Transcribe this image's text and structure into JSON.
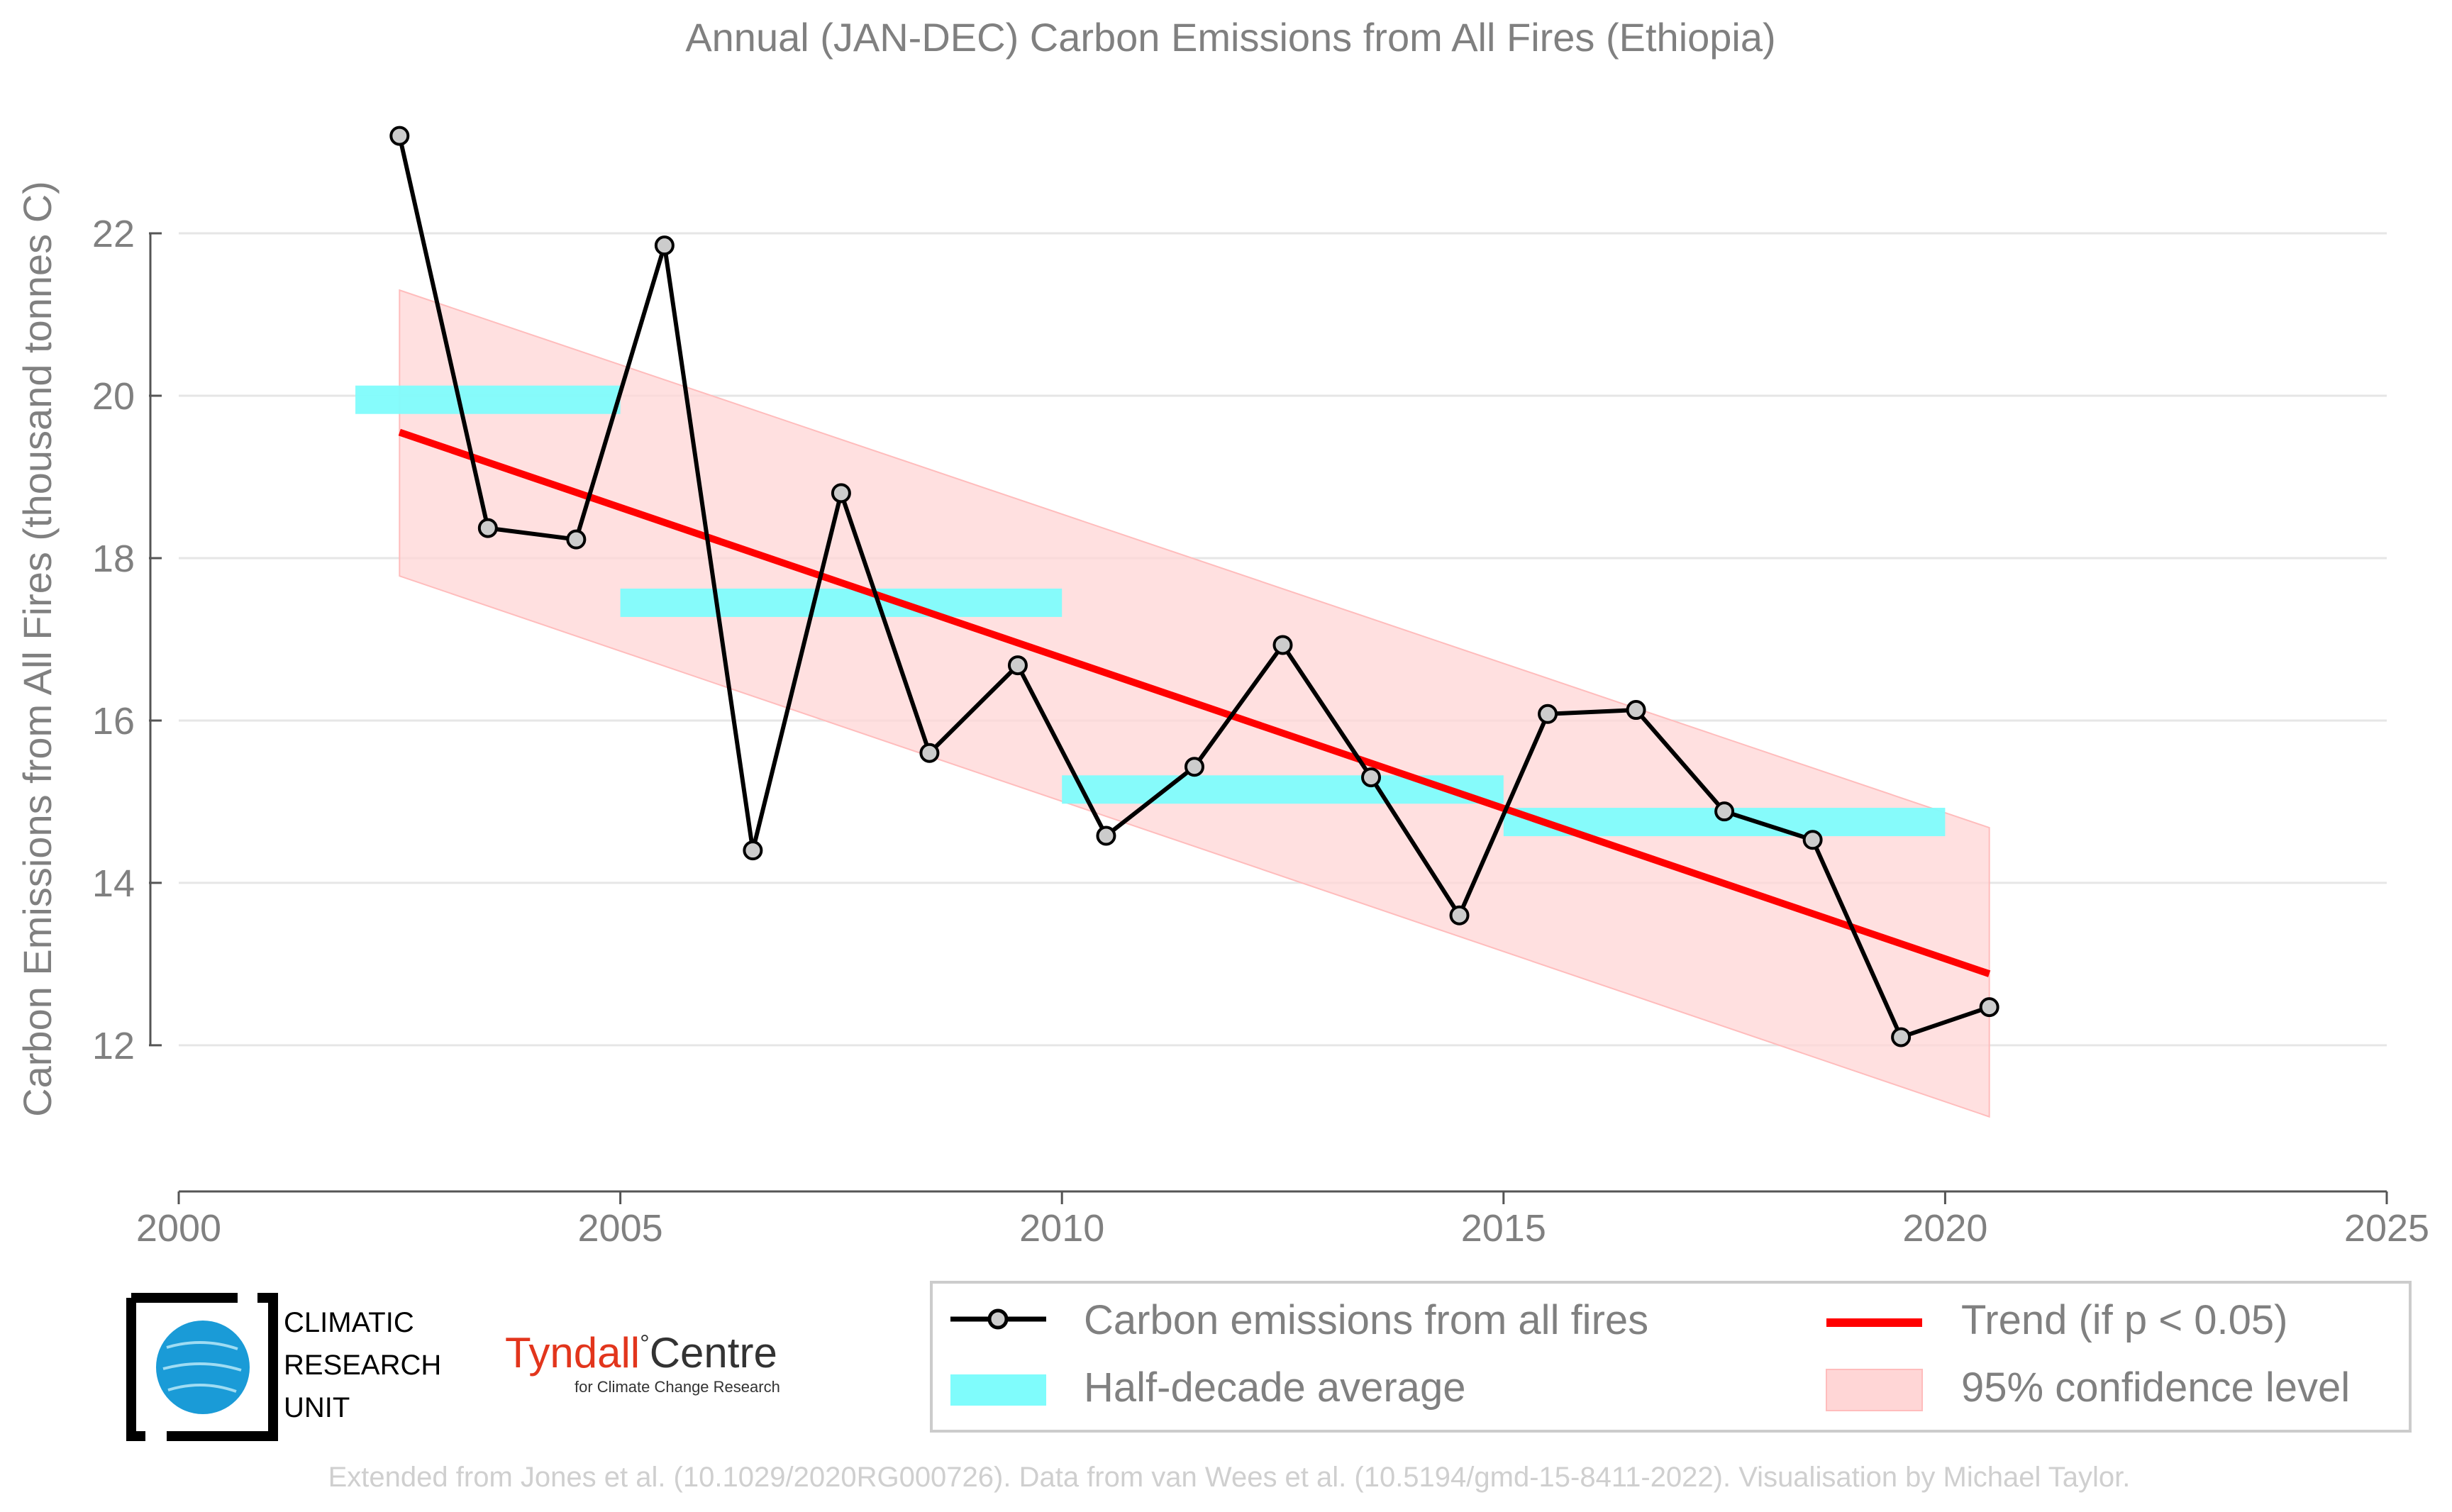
{
  "chart_data": {
    "type": "line",
    "title": "Annual (JAN-DEC) Carbon Emissions from All Fires (Ethiopia)",
    "xlabel": "",
    "ylabel": "Carbon Emissions from All Fires (thousand tonnes C)",
    "xlim": [
      2000,
      2025
    ],
    "ylim": [
      10.2,
      24.0
    ],
    "x_ticks": [
      2000,
      2005,
      2010,
      2015,
      2020,
      2025
    ],
    "y_ticks": [
      12,
      14,
      16,
      18,
      20,
      22
    ],
    "grid": "horizontal",
    "legend_position": "bottom-right",
    "series": [
      {
        "name": "Carbon emissions from all fires",
        "color": "#000000",
        "marker_fill": "#cccccc",
        "x": [
          2002.5,
          2003.5,
          2004.5,
          2005.5,
          2006.5,
          2007.5,
          2008.5,
          2009.5,
          2010.5,
          2011.5,
          2012.5,
          2013.5,
          2014.5,
          2015.5,
          2016.5,
          2017.5,
          2018.5,
          2019.5,
          2020.5
        ],
        "values": [
          23.2,
          18.37,
          18.23,
          21.85,
          14.4,
          18.8,
          15.6,
          16.68,
          14.58,
          15.43,
          16.93,
          15.3,
          13.6,
          16.08,
          16.13,
          14.88,
          14.53,
          12.1,
          12.47
        ]
      },
      {
        "name": "Half-decade average",
        "color": "#7ffcfc",
        "segments": [
          {
            "x0": 2002.0,
            "x1": 2005.0,
            "value": 19.95
          },
          {
            "x0": 2005.0,
            "x1": 2010.0,
            "value": 17.45
          },
          {
            "x0": 2010.0,
            "x1": 2015.0,
            "value": 15.15
          },
          {
            "x0": 2015.0,
            "x1": 2020.0,
            "value": 14.75
          }
        ]
      },
      {
        "name": "Trend (if p < 0.05)",
        "color": "#ff0000",
        "x": [
          2002.5,
          2020.5
        ],
        "values": [
          19.55,
          12.88
        ]
      },
      {
        "name": "95% confidence level",
        "color": "#ffd6d6",
        "x": [
          2002.5,
          2020.5
        ],
        "upper": [
          21.3,
          14.68
        ],
        "lower": [
          17.78,
          11.12
        ]
      }
    ],
    "credit": "Extended from Jones et al. (10.1029/2020RG000726). Data from van Wees et al. (10.5194/gmd-15-8411-2022). Visualisation by Michael Taylor."
  },
  "logos": {
    "cru": [
      "CLIMATIC",
      "RESEARCH",
      "UNIT"
    ],
    "tyndall_main": "Tyndall",
    "tyndall_degree": "°",
    "tyndall_centre": "Centre",
    "tyndall_sub": "for Climate Change Research"
  },
  "colors": {
    "text": "#808080",
    "grid": "#e6e6e6",
    "tyndall_red": "#e2351c",
    "cru_blue": "#1a9bd7"
  }
}
